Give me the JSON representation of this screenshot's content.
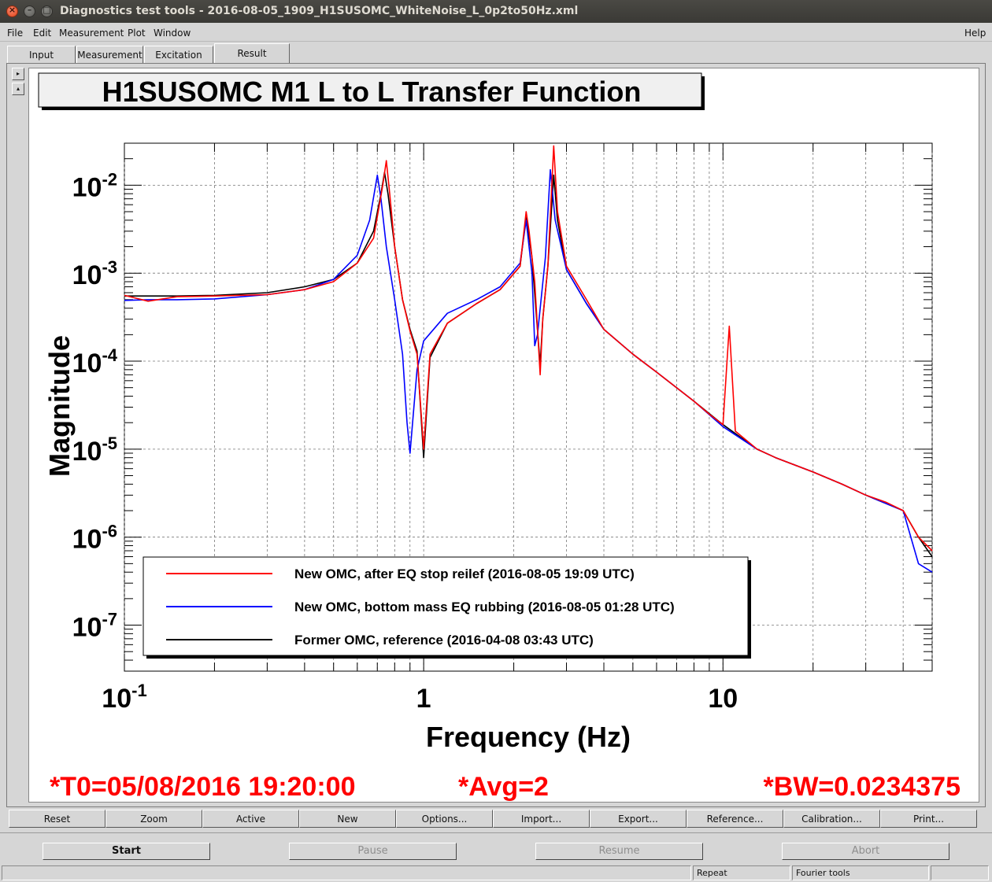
{
  "window": {
    "title": "Diagnostics test tools - 2016-08-05_1909_H1SUSOMC_WhiteNoise_L_0p2to50Hz.xml",
    "close_glyph": "×",
    "min_glyph": "–",
    "max_glyph": "□"
  },
  "menu": {
    "file": "File",
    "edit": "Edit",
    "measurement": "Measurement",
    "plot": "Plot",
    "window": "Window",
    "help": "Help"
  },
  "tabs": [
    {
      "label": "Input"
    },
    {
      "label": "Measurement"
    },
    {
      "label": "Excitation"
    },
    {
      "label": "Result",
      "active": true
    }
  ],
  "scroll": {
    "right_glyph": "▸",
    "up_glyph": "▴"
  },
  "plot": {
    "title": "H1SUSOMC M1 L to L Transfer Function",
    "xlabel": "Frequency (Hz)",
    "ylabel": "Magnitude",
    "footer": {
      "t0": "*T0=05/08/2016 19:20:00",
      "avg": "*Avg=2",
      "bw": "*BW=0.0234375"
    },
    "footer_color": "#ff0000"
  },
  "chart_data": {
    "type": "line",
    "title": "H1SUSOMC M1 L to L Transfer Function",
    "xlabel": "Frequency (Hz)",
    "ylabel": "Magnitude",
    "xscale": "log",
    "yscale": "log",
    "xlim": [
      0.1,
      50
    ],
    "ylim": [
      3e-08,
      0.03
    ],
    "grid": true,
    "legend_position": "bottom-left",
    "x_ticks": [
      {
        "base": "10",
        "exp": "-1",
        "value": 0.1
      },
      {
        "base": "1",
        "exp": "",
        "value": 1
      },
      {
        "base": "10",
        "exp": "",
        "value": 10
      }
    ],
    "y_ticks": [
      {
        "base": "10",
        "exp": "-2",
        "value": 0.01
      },
      {
        "base": "10",
        "exp": "-3",
        "value": 0.001
      },
      {
        "base": "10",
        "exp": "-4",
        "value": 0.0001
      },
      {
        "base": "10",
        "exp": "-5",
        "value": 1e-05
      },
      {
        "base": "10",
        "exp": "-6",
        "value": 1e-06
      },
      {
        "base": "10",
        "exp": "-7",
        "value": 1e-07
      }
    ],
    "series": [
      {
        "name": "New OMC, after EQ stop reilef (2016-08-05 19:09 UTC)",
        "color": "#ff0000",
        "points": [
          [
            0.1,
            0.00056
          ],
          [
            0.12,
            0.00048
          ],
          [
            0.15,
            0.00054
          ],
          [
            0.2,
            0.00055
          ],
          [
            0.3,
            0.00057
          ],
          [
            0.4,
            0.00065
          ],
          [
            0.5,
            0.0008
          ],
          [
            0.6,
            0.0013
          ],
          [
            0.68,
            0.0025
          ],
          [
            0.73,
            0.01
          ],
          [
            0.75,
            0.019
          ],
          [
            0.77,
            0.008
          ],
          [
            0.8,
            0.002
          ],
          [
            0.85,
            0.0005
          ],
          [
            0.9,
            0.00022
          ],
          [
            0.95,
            0.00012
          ],
          [
            1.0,
            1e-05
          ],
          [
            1.05,
            0.00012
          ],
          [
            1.2,
            0.00027
          ],
          [
            1.5,
            0.00045
          ],
          [
            1.8,
            0.00065
          ],
          [
            2.1,
            0.0012
          ],
          [
            2.2,
            0.005
          ],
          [
            2.25,
            0.003
          ],
          [
            2.35,
            0.0008
          ],
          [
            2.45,
            7e-05
          ],
          [
            2.5,
            0.0003
          ],
          [
            2.6,
            0.0012
          ],
          [
            2.72,
            0.028
          ],
          [
            2.8,
            0.005
          ],
          [
            3.0,
            0.0012
          ],
          [
            3.5,
            0.0005
          ],
          [
            4,
            0.00023
          ],
          [
            5,
            0.00012
          ],
          [
            6,
            7.5e-05
          ],
          [
            7,
            5e-05
          ],
          [
            8,
            3.5e-05
          ],
          [
            9,
            2.5e-05
          ],
          [
            10,
            1.9e-05
          ],
          [
            10.5,
            0.00025
          ],
          [
            11,
            1.6e-05
          ],
          [
            13,
            1e-05
          ],
          [
            15,
            8e-06
          ],
          [
            20,
            5.5e-06
          ],
          [
            25,
            4e-06
          ],
          [
            30,
            3e-06
          ],
          [
            35,
            2.5e-06
          ],
          [
            40,
            2e-06
          ],
          [
            45,
            1e-06
          ],
          [
            50,
            7e-07
          ]
        ]
      },
      {
        "name": "New OMC, bottom mass EQ rubbing  (2016-08-05 01:28 UTC)",
        "color": "#0000ff",
        "points": [
          [
            0.1,
            0.00049
          ],
          [
            0.12,
            0.0005
          ],
          [
            0.15,
            0.0005
          ],
          [
            0.2,
            0.00051
          ],
          [
            0.3,
            0.00057
          ],
          [
            0.4,
            0.00065
          ],
          [
            0.5,
            0.00085
          ],
          [
            0.6,
            0.0016
          ],
          [
            0.66,
            0.004
          ],
          [
            0.7,
            0.013
          ],
          [
            0.72,
            0.007
          ],
          [
            0.75,
            0.002
          ],
          [
            0.8,
            0.0005
          ],
          [
            0.85,
            0.00012
          ],
          [
            0.88,
            2e-05
          ],
          [
            0.9,
            9e-06
          ],
          [
            0.95,
            8e-05
          ],
          [
            1.0,
            0.00017
          ],
          [
            1.2,
            0.00035
          ],
          [
            1.5,
            0.0005
          ],
          [
            1.8,
            0.0007
          ],
          [
            2.1,
            0.0013
          ],
          [
            2.2,
            0.004
          ],
          [
            2.3,
            0.001
          ],
          [
            2.35,
            0.00015
          ],
          [
            2.4,
            0.0002
          ],
          [
            2.55,
            0.0015
          ],
          [
            2.65,
            0.015
          ],
          [
            2.75,
            0.004
          ],
          [
            3.0,
            0.0011
          ],
          [
            3.5,
            0.00045
          ],
          [
            4,
            0.00023
          ],
          [
            5,
            0.00012
          ],
          [
            6,
            7.5e-05
          ],
          [
            7,
            5e-05
          ],
          [
            8,
            3.5e-05
          ],
          [
            10,
            1.8e-05
          ],
          [
            13,
            1e-05
          ],
          [
            15,
            8e-06
          ],
          [
            20,
            5.5e-06
          ],
          [
            25,
            4e-06
          ],
          [
            30,
            3e-06
          ],
          [
            40,
            2e-06
          ],
          [
            45,
            5e-07
          ],
          [
            50,
            4e-07
          ]
        ]
      },
      {
        "name": "Former OMC, reference (2016-04-08 03:43 UTC)",
        "color": "#000000",
        "points": [
          [
            0.1,
            0.00055
          ],
          [
            0.15,
            0.00055
          ],
          [
            0.2,
            0.00056
          ],
          [
            0.3,
            0.0006
          ],
          [
            0.4,
            0.0007
          ],
          [
            0.5,
            0.00085
          ],
          [
            0.6,
            0.0013
          ],
          [
            0.68,
            0.003
          ],
          [
            0.72,
            0.008
          ],
          [
            0.74,
            0.014
          ],
          [
            0.76,
            0.008
          ],
          [
            0.8,
            0.002
          ],
          [
            0.85,
            0.0005
          ],
          [
            0.9,
            0.00023
          ],
          [
            0.95,
            0.00013
          ],
          [
            1.0,
            8e-06
          ],
          [
            1.05,
            0.00011
          ],
          [
            1.2,
            0.00027
          ],
          [
            1.5,
            0.00045
          ],
          [
            1.8,
            0.00065
          ],
          [
            2.1,
            0.0012
          ],
          [
            2.2,
            0.0045
          ],
          [
            2.3,
            0.0015
          ],
          [
            2.45,
            9e-05
          ],
          [
            2.5,
            0.0003
          ],
          [
            2.6,
            0.0012
          ],
          [
            2.72,
            0.013
          ],
          [
            2.8,
            0.004
          ],
          [
            3.0,
            0.0011
          ],
          [
            3.5,
            0.00045
          ],
          [
            4,
            0.00023
          ],
          [
            5,
            0.00012
          ],
          [
            6,
            7.5e-05
          ],
          [
            8,
            3.5e-05
          ],
          [
            10,
            1.9e-05
          ],
          [
            13,
            1e-05
          ],
          [
            15,
            8e-06
          ],
          [
            20,
            5.5e-06
          ],
          [
            25,
            4e-06
          ],
          [
            30,
            3e-06
          ],
          [
            40,
            2e-06
          ],
          [
            45,
            1e-06
          ],
          [
            50,
            6e-07
          ]
        ]
      }
    ]
  },
  "toolbar": {
    "reset": "Reset",
    "zoom": "Zoom",
    "active": "Active",
    "new": "New",
    "options": "Options...",
    "import": "Import...",
    "export": "Export...",
    "reference": "Reference...",
    "calibration": "Calibration...",
    "print": "Print..."
  },
  "controls": {
    "start": "Start",
    "pause": "Pause",
    "resume": "Resume",
    "abort": "Abort"
  },
  "status": {
    "repeat": "Repeat",
    "fourier": "Fourier tools"
  }
}
